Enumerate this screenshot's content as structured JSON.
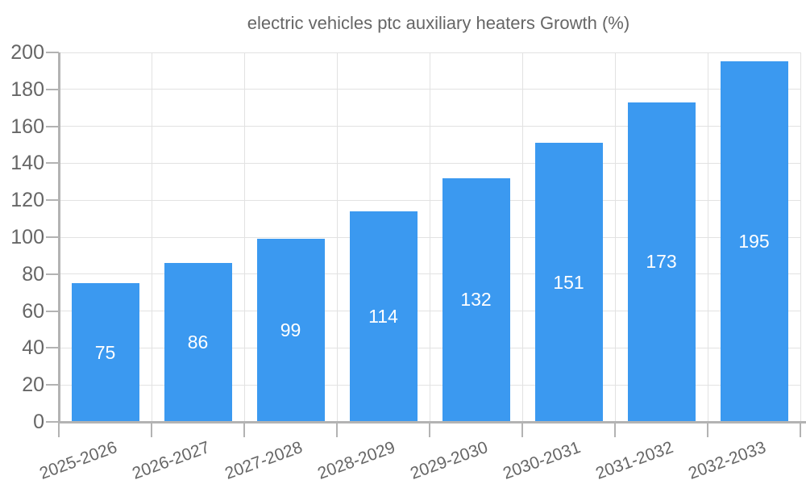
{
  "chart_data": {
    "type": "bar",
    "title": "electric vehicles ptc auxiliary heaters Growth (%)",
    "legend": [
      "electric vehicles ptc auxiliary heaters Growth (%)"
    ],
    "legend_position": "top-center",
    "categories": [
      "2025-2026",
      "2026-2027",
      "2027-2028",
      "2028-2029",
      "2029-2030",
      "2030-2031",
      "2031-2032",
      "2032-2033"
    ],
    "series": [
      {
        "name": "electric vehicles ptc auxiliary heaters Growth (%)",
        "values": [
          75,
          86,
          99,
          114,
          132,
          151,
          173,
          195
        ]
      }
    ],
    "xlabel": "",
    "ylabel": "",
    "ylim": [
      0,
      200
    ],
    "ytick_step": 20,
    "yticks": [
      0,
      20,
      40,
      60,
      80,
      100,
      120,
      140,
      160,
      180,
      200
    ],
    "x_tick_rotation_deg": -20,
    "grid": true,
    "value_labels_position": "inside-center",
    "colors": {
      "bar": "#3b99f0",
      "grid_line": "#e2e2e2",
      "axis_line": "#b3b3b3",
      "axis_text": "#666666",
      "value_text": "#ffffff",
      "background": "#ffffff"
    }
  }
}
